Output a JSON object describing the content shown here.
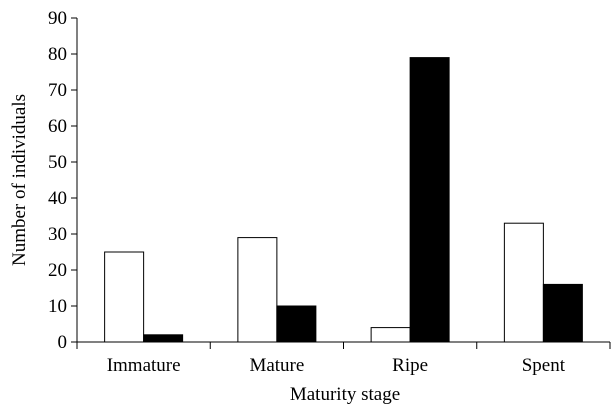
{
  "chart_data": {
    "type": "bar",
    "title": "",
    "xlabel": "Maturity stage",
    "ylabel": "Number of individuals",
    "categories": [
      "Immature",
      "Mature",
      "Ripe",
      "Spent"
    ],
    "series": [
      {
        "values": [
          25,
          29,
          4,
          33
        ],
        "color": "#ffffff",
        "stroke": "#000000"
      },
      {
        "values": [
          2,
          10,
          79,
          16
        ],
        "color": "#000000",
        "stroke": "#000000"
      }
    ],
    "ylim": [
      0,
      90
    ],
    "yticks": [
      "0",
      "10",
      "20",
      "30",
      "40",
      "50",
      "60",
      "70",
      "80",
      "90"
    ],
    "grid": false,
    "legend": "none"
  }
}
